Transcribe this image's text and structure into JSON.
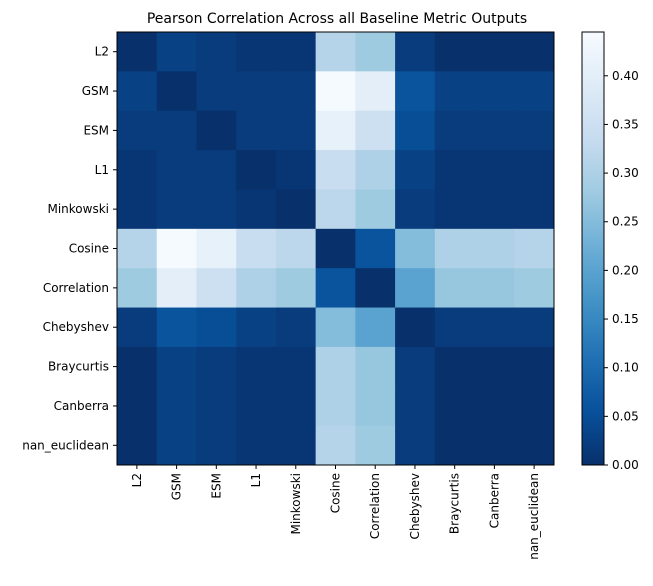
{
  "chart_data": {
    "type": "heatmap",
    "title": "Pearson Correlation Across all Baseline Metric Outputs",
    "xlabel": "",
    "ylabel": "",
    "row_labels": [
      "L2",
      "GSM",
      "ESM",
      "L1",
      "Minkowski",
      "Cosine",
      "Correlation",
      "Chebyshev",
      "Braycurtis",
      "Canberra",
      "nan_euclidean"
    ],
    "col_labels": [
      "L2",
      "GSM",
      "ESM",
      "L1",
      "Minkowski",
      "Cosine",
      "Correlation",
      "Chebyshev",
      "Braycurtis",
      "Canberra",
      "nan_euclidean"
    ],
    "values": [
      [
        0.0,
        0.03,
        0.02,
        0.01,
        0.01,
        0.31,
        0.28,
        0.02,
        0.0,
        0.0,
        0.0
      ],
      [
        0.03,
        0.0,
        0.02,
        0.02,
        0.02,
        0.44,
        0.4,
        0.06,
        0.03,
        0.03,
        0.03
      ],
      [
        0.02,
        0.02,
        0.0,
        0.02,
        0.02,
        0.41,
        0.35,
        0.05,
        0.02,
        0.02,
        0.02
      ],
      [
        0.01,
        0.02,
        0.02,
        0.0,
        0.01,
        0.34,
        0.3,
        0.03,
        0.01,
        0.01,
        0.01
      ],
      [
        0.01,
        0.02,
        0.02,
        0.01,
        0.0,
        0.32,
        0.28,
        0.02,
        0.01,
        0.01,
        0.01
      ],
      [
        0.31,
        0.44,
        0.41,
        0.34,
        0.32,
        0.0,
        0.06,
        0.25,
        0.3,
        0.3,
        0.31
      ],
      [
        0.28,
        0.4,
        0.35,
        0.3,
        0.28,
        0.06,
        0.0,
        0.2,
        0.27,
        0.27,
        0.28
      ],
      [
        0.02,
        0.06,
        0.05,
        0.03,
        0.02,
        0.25,
        0.2,
        0.0,
        0.02,
        0.02,
        0.02
      ],
      [
        0.0,
        0.03,
        0.02,
        0.01,
        0.01,
        0.3,
        0.27,
        0.02,
        0.0,
        0.0,
        0.0
      ],
      [
        0.0,
        0.03,
        0.02,
        0.01,
        0.01,
        0.3,
        0.27,
        0.02,
        0.0,
        0.0,
        0.0
      ],
      [
        0.0,
        0.03,
        0.02,
        0.01,
        0.01,
        0.31,
        0.28,
        0.02,
        0.0,
        0.0,
        0.0
      ]
    ],
    "zlim": [
      0,
      0.445
    ],
    "colormap": "Blues_r",
    "colorbar_ticks": [
      "0.00",
      "0.05",
      "0.10",
      "0.15",
      "0.20",
      "0.25",
      "0.30",
      "0.35",
      "0.40"
    ],
    "grid": false
  }
}
